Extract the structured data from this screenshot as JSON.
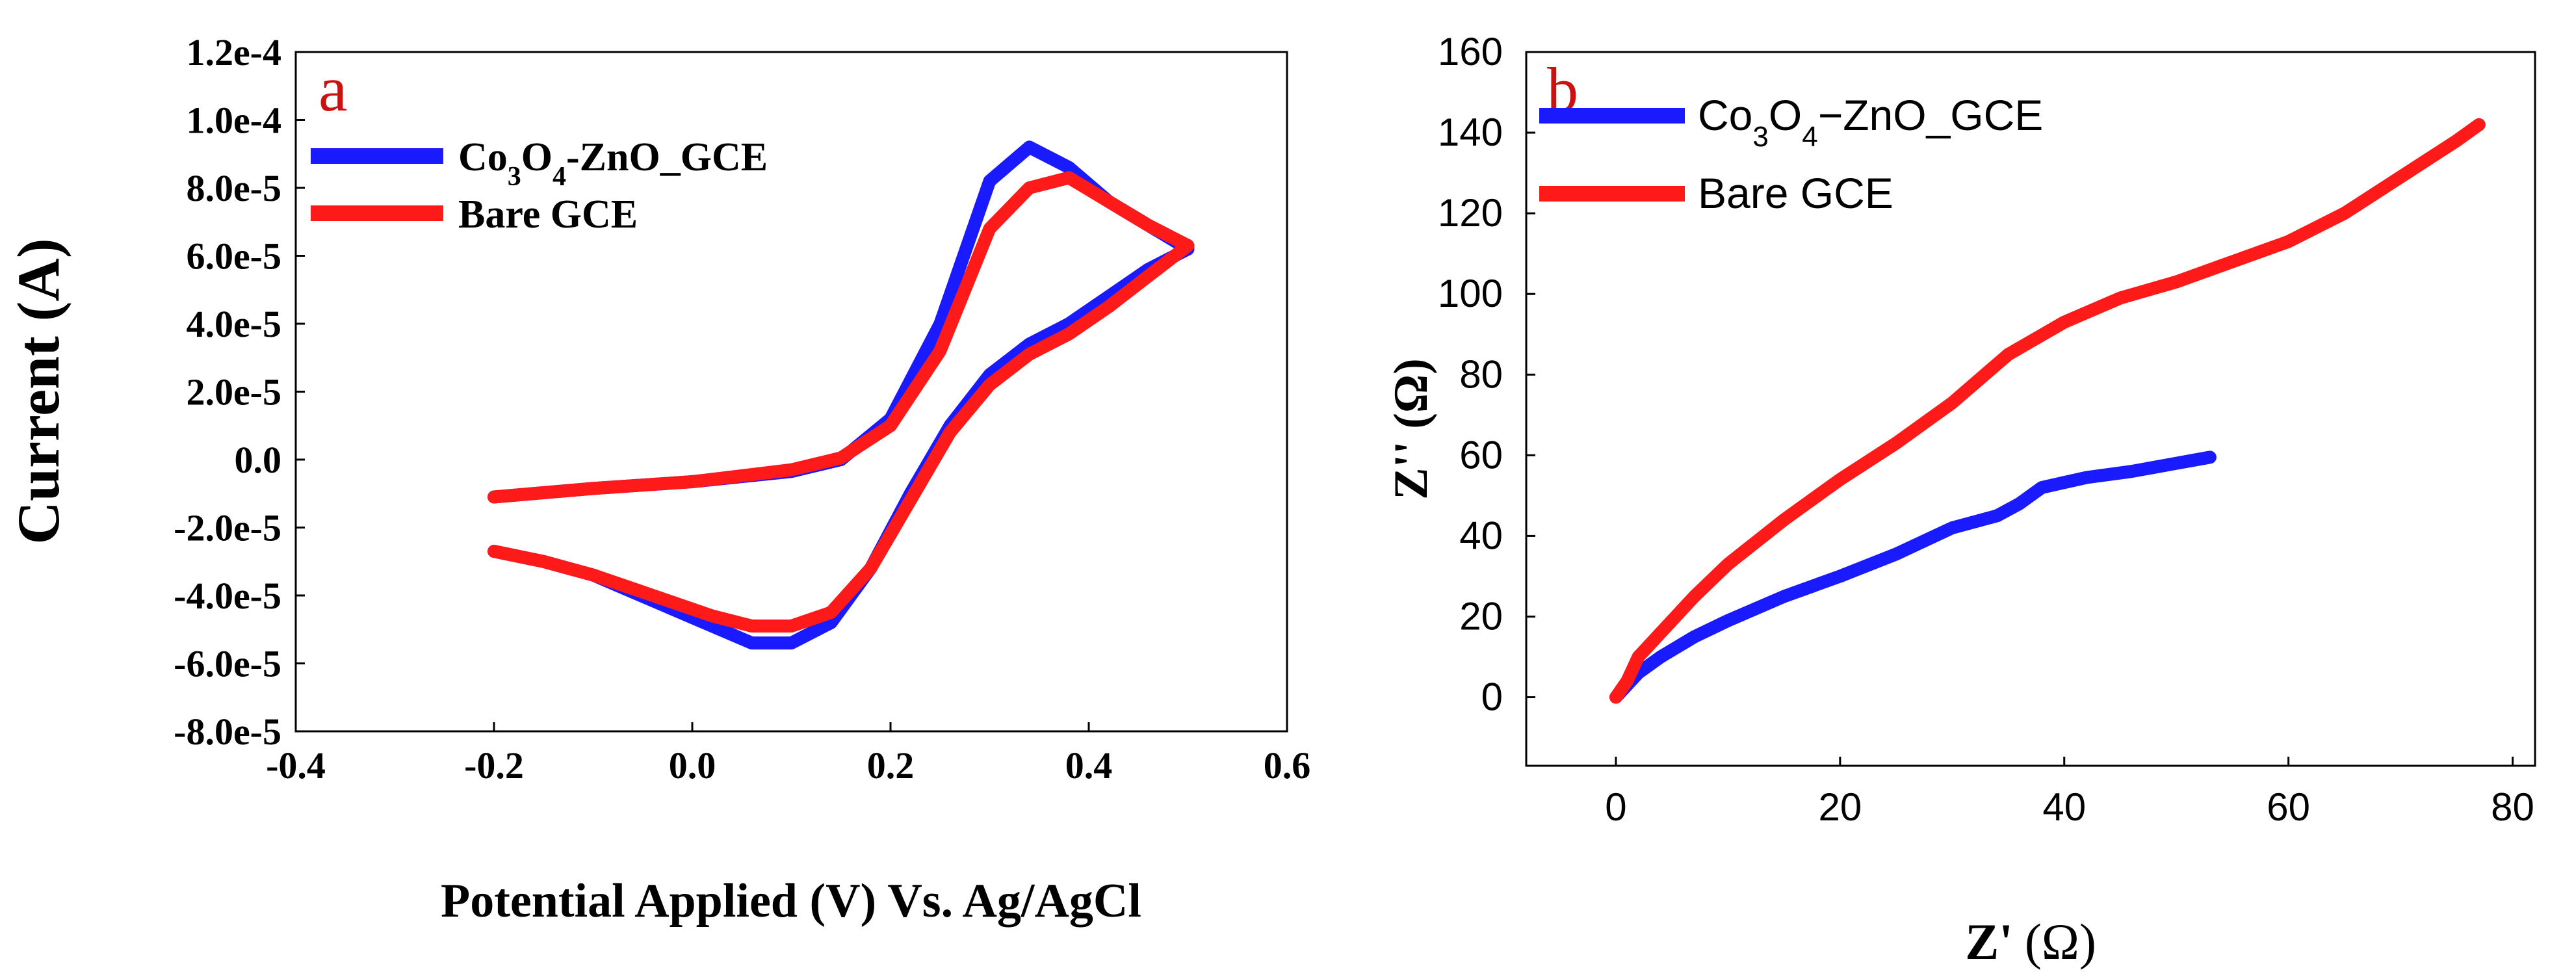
{
  "colors": {
    "series_1": "#1a1aff",
    "series_2": "#ff1a1a",
    "axis": "#000000",
    "panel_label": "#cc1111"
  },
  "chart_data": [
    {
      "panel_label": "a",
      "type": "line",
      "title": "",
      "xlabel": "Potential Applied (V) Vs. Ag/AgCl",
      "ylabel": "Current (A)",
      "xlim": [
        -0.4,
        0.6
      ],
      "ylim": [
        -8e-05,
        0.00012
      ],
      "xticks": [
        -0.4,
        -0.2,
        0.0,
        0.2,
        0.4,
        0.6
      ],
      "xtick_labels": [
        "-0.4",
        "-0.2",
        "0.0",
        "0.2",
        "0.4",
        "0.6"
      ],
      "yticks": [
        0.00012,
        0.0001,
        8e-05,
        6e-05,
        4e-05,
        2e-05,
        0.0,
        -2e-05,
        -4e-05,
        -6e-05,
        -8e-05
      ],
      "ytick_labels": [
        "1.2e-4",
        "1.0e-4",
        "8.0e-5",
        "6.0e-5",
        "4.0e-5",
        "2.0e-5",
        "0.0",
        "-2.0e-5",
        "-4.0e-5",
        "-6.0e-5",
        "-8.0e-5"
      ],
      "grid": false,
      "legend_position": "top-left",
      "series": [
        {
          "name_main": "Co",
          "name_sub1": "3",
          "name_mid": "O",
          "name_sub2": "4",
          "name_tail": "-ZnO_GCE",
          "color": "#1a1aff",
          "x": [
            -0.2,
            -0.1,
            0.0,
            0.1,
            0.15,
            0.2,
            0.25,
            0.3,
            0.34,
            0.38,
            0.42,
            0.46,
            0.5,
            0.46,
            0.42,
            0.38,
            0.34,
            0.3,
            0.26,
            0.22,
            0.18,
            0.14,
            0.1,
            0.06,
            0.02,
            -0.02,
            -0.06,
            -0.1,
            -0.15,
            -0.2
          ],
          "y": [
            -1.1e-05,
            -8.5e-06,
            -6.5e-06,
            -3.5e-06,
            0.0,
            1.2e-05,
            4e-05,
            8.2e-05,
            9.2e-05,
            8.6e-05,
            7.6e-05,
            6.9e-05,
            6.2e-05,
            5.6e-05,
            4.8e-05,
            4e-05,
            3.4e-05,
            2.5e-05,
            1e-05,
            -1e-05,
            -3.2e-05,
            -4.8e-05,
            -5.4e-05,
            -5.4e-05,
            -4.9e-05,
            -4.4e-05,
            -3.9e-05,
            -3.4e-05,
            -3e-05,
            -2.7e-05
          ]
        },
        {
          "name": "Bare GCE",
          "color": "#ff1a1a",
          "x": [
            -0.2,
            -0.1,
            0.0,
            0.1,
            0.15,
            0.2,
            0.25,
            0.3,
            0.34,
            0.38,
            0.42,
            0.46,
            0.5,
            0.46,
            0.42,
            0.38,
            0.34,
            0.3,
            0.26,
            0.22,
            0.18,
            0.14,
            0.1,
            0.06,
            0.02,
            -0.02,
            -0.06,
            -0.1,
            -0.15,
            -0.2
          ],
          "y": [
            -1.1e-05,
            -8.5e-06,
            -6.5e-06,
            -3e-06,
            5e-07,
            1e-05,
            3.2e-05,
            6.8e-05,
            8e-05,
            8.3e-05,
            7.6e-05,
            6.9e-05,
            6.3e-05,
            5.4e-05,
            4.5e-05,
            3.7e-05,
            3.1e-05,
            2.2e-05,
            8e-06,
            -1.2e-05,
            -3.2e-05,
            -4.5e-05,
            -4.9e-05,
            -4.9e-05,
            -4.6e-05,
            -4.2e-05,
            -3.8e-05,
            -3.4e-05,
            -3e-05,
            -2.7e-05
          ]
        }
      ]
    },
    {
      "panel_label": "b",
      "type": "line",
      "title": "",
      "xlabel_main": "Z'",
      "xlabel_unit": "(Ω)",
      "ylabel": "Z'' (Ω)",
      "xlim": [
        -8,
        82
      ],
      "ylim": [
        -17,
        160
      ],
      "xticks": [
        0,
        20,
        40,
        60,
        80
      ],
      "xtick_labels": [
        "0",
        "20",
        "40",
        "60",
        "80"
      ],
      "yticks": [
        0,
        20,
        40,
        60,
        80,
        100,
        120,
        140,
        160
      ],
      "ytick_labels": [
        "0",
        "20",
        "40",
        "60",
        "80",
        "100",
        "120",
        "140",
        "160"
      ],
      "grid": false,
      "legend_position": "top-left",
      "series": [
        {
          "name_main": "Co",
          "name_sub1": "3",
          "name_mid": "O",
          "name_sub2": "4",
          "name_tail": "−ZnO_GCE",
          "color": "#1a1aff",
          "x": [
            0,
            1,
            2,
            4,
            7,
            10,
            15,
            20,
            25,
            30,
            34,
            36,
            38,
            42,
            46,
            50,
            53
          ],
          "y": [
            0,
            3,
            6,
            10,
            15,
            19,
            25,
            30,
            35.5,
            42,
            45,
            48,
            52,
            54.5,
            56,
            58,
            59.5
          ]
        },
        {
          "name": "Bare GCE",
          "color": "#ff1a1a",
          "x": [
            0,
            1,
            2,
            4,
            7,
            10,
            15,
            20,
            25,
            30,
            35,
            40,
            45,
            50,
            55,
            60,
            65,
            70,
            75,
            77
          ],
          "y": [
            0,
            4,
            10,
            16,
            25,
            33,
            44,
            54,
            63,
            73,
            85,
            93,
            99,
            103,
            108,
            113,
            120,
            129,
            138,
            142
          ]
        }
      ]
    }
  ]
}
